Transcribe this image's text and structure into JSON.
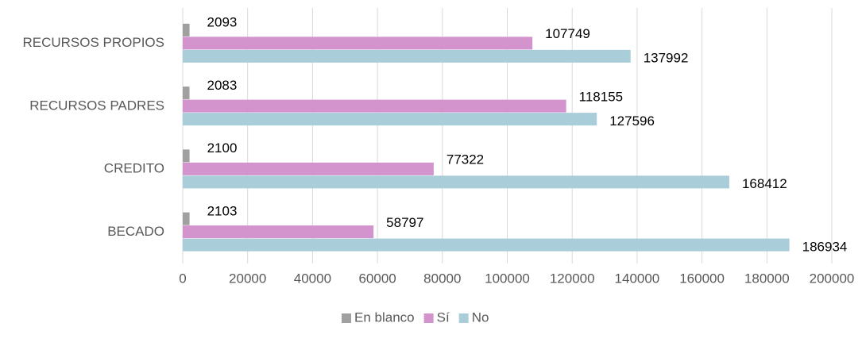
{
  "chart_data": {
    "type": "hbar",
    "categories": [
      "RECURSOS PROPIOS",
      "RECURSOS PADRES",
      "CREDITO",
      "BECADO"
    ],
    "series": [
      {
        "name": "En blanco",
        "color": "#a0a0a0",
        "values": [
          2093,
          2083,
          2100,
          2103
        ]
      },
      {
        "name": "Sí",
        "color": "#d394cd",
        "values": [
          107749,
          118155,
          77322,
          58797
        ]
      },
      {
        "name": "No",
        "color": "#a9cdd9",
        "values": [
          137992,
          127596,
          168412,
          186934
        ]
      }
    ],
    "xlim": [
      0,
      200000
    ],
    "xticks": [
      0,
      20000,
      40000,
      60000,
      80000,
      100000,
      120000,
      140000,
      160000,
      180000,
      200000
    ],
    "grid": true,
    "legend": "bottom"
  }
}
